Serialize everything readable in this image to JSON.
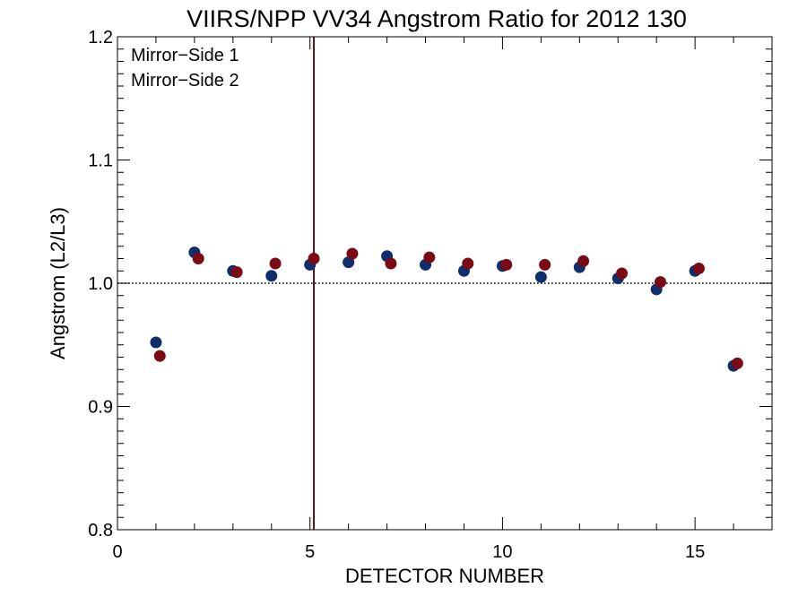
{
  "chart_data": {
    "type": "scatter",
    "title": "VIIRS/NPP VV34 Angstrom Ratio for 2012 130",
    "xlabel": "DETECTOR NUMBER",
    "ylabel": "Angstrom (L2/L3)",
    "xlim": [
      0,
      17
    ],
    "ylim": [
      0.8,
      1.2
    ],
    "x_ticks": [
      0,
      5,
      10,
      15
    ],
    "x_tick_labels": [
      "0",
      "5",
      "10",
      "15"
    ],
    "y_ticks": [
      0.8,
      0.9,
      1.0,
      1.1,
      1.2
    ],
    "y_tick_labels": [
      "0.8",
      "0.9",
      "1.0",
      "1.1",
      "1.2"
    ],
    "reference_line_y": 1.0,
    "vertical_line_x": 5.1,
    "legend_position": "top-left",
    "series": [
      {
        "name": "Mirror−Side 1",
        "color": "#0e2f6b",
        "x": [
          1,
          2,
          3,
          4,
          5,
          6,
          7,
          8,
          9,
          10,
          11,
          12,
          13,
          14,
          15,
          16
        ],
        "y": [
          0.952,
          1.025,
          1.01,
          1.006,
          1.015,
          1.017,
          1.022,
          1.015,
          1.01,
          1.014,
          1.005,
          1.013,
          1.004,
          0.995,
          1.01,
          0.933
        ]
      },
      {
        "name": "Mirror−Side 2",
        "color": "#7a0a14",
        "x": [
          1.1,
          2.1,
          3.1,
          4.1,
          5.1,
          6.1,
          7.1,
          8.1,
          9.1,
          10.1,
          11.1,
          12.1,
          13.1,
          14.1,
          15.1,
          16.1
        ],
        "y": [
          0.941,
          1.02,
          1.009,
          1.016,
          1.02,
          1.024,
          1.016,
          1.021,
          1.016,
          1.015,
          1.015,
          1.018,
          1.008,
          1.001,
          1.012,
          0.935
        ]
      }
    ]
  },
  "colors": {
    "vertical_line": "#6b0f1a",
    "axis": "#000000"
  }
}
